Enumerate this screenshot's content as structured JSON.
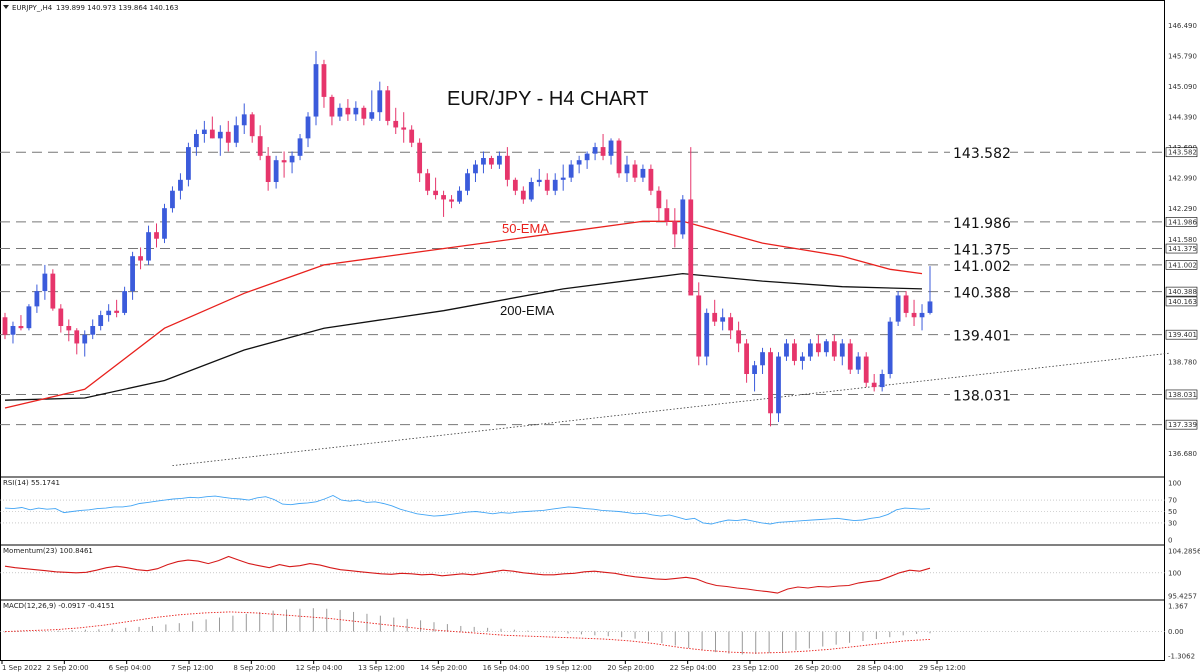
{
  "header": {
    "symbol": "EURJPY_,H4",
    "ohlc": "139.899 140.973 139.864 140.163"
  },
  "colors": {
    "bull": "#3b5bdb",
    "bear": "#e6356b",
    "ema50": "#e8211d",
    "ema200": "#111111",
    "rsi": "#42a5f5",
    "momentum": "#d61a1a",
    "grid": "#999999"
  },
  "chart_data": [
    {
      "type": "candlestick",
      "title": "EUR/JPY - H4 CHART",
      "ylim": [
        136.3,
        146.75
      ],
      "y_ticks": [
        "146.490",
        "145.790",
        "145.090",
        "144.390",
        "143.690",
        "143.582",
        "142.990",
        "142.290",
        "141.986",
        "141.580",
        "141.375",
        "141.002",
        "140.388",
        "140.163",
        "139.401",
        "138.780",
        "138.031",
        "137.339",
        "136.680"
      ],
      "x_ticks": [
        "1 Sep 2022",
        "2 Sep 20:00",
        "6 Sep 04:00",
        "7 Sep 12:00",
        "8 Sep 20:00",
        "12 Sep 04:00",
        "13 Sep 12:00",
        "14 Sep 20:00",
        "16 Sep 04:00",
        "19 Sep 12:00",
        "20 Sep 20:00",
        "22 Sep 04:00",
        "23 Sep 12:00",
        "26 Sep 20:00",
        "28 Sep 04:00",
        "29 Sep 12:00"
      ],
      "levels": [
        {
          "value": 143.582,
          "label": "143.582",
          "tag": "143.582"
        },
        {
          "value": 141.986,
          "label": "141.986",
          "tag": "141.986"
        },
        {
          "value": 141.375,
          "label": "141.375",
          "tag": "141.375"
        },
        {
          "value": 141.002,
          "label": "141.002",
          "tag": "141.002"
        },
        {
          "value": 140.388,
          "label": "140.388",
          "tag": "140.388"
        },
        {
          "value": 139.401,
          "label": "139.401",
          "tag": "139.401"
        },
        {
          "value": 138.031,
          "label": "138.031",
          "tag": "138.031"
        },
        {
          "value": 137.339,
          "label": "",
          "tag": "137.339"
        }
      ],
      "current_price": "140.163",
      "annotations": {
        "ema50": "50-EMA",
        "ema200": "200-EMA"
      },
      "ema50": [
        [
          0,
          137.72
        ],
        [
          10,
          138.15
        ],
        [
          20,
          139.55
        ],
        [
          30,
          140.35
        ],
        [
          40,
          141.0
        ],
        [
          50,
          141.25
        ],
        [
          60,
          141.5
        ],
        [
          70,
          141.75
        ],
        [
          80,
          142.0
        ],
        [
          85,
          142.0
        ],
        [
          95,
          141.5
        ],
        [
          105,
          141.2
        ],
        [
          111,
          140.9
        ],
        [
          115,
          140.8
        ]
      ],
      "ema200": [
        [
          0,
          137.9
        ],
        [
          10,
          137.95
        ],
        [
          20,
          138.35
        ],
        [
          30,
          139.05
        ],
        [
          40,
          139.55
        ],
        [
          55,
          139.95
        ],
        [
          70,
          140.45
        ],
        [
          85,
          140.8
        ],
        [
          95,
          140.63
        ],
        [
          105,
          140.5
        ],
        [
          115,
          140.45
        ]
      ],
      "trendline": [
        [
          21,
          136.4
        ],
        [
          116,
          138.36
        ]
      ],
      "candles": [
        [
          139.8,
          139.9,
          139.3,
          139.4
        ],
        [
          139.4,
          139.7,
          139.2,
          139.6
        ],
        [
          139.6,
          139.85,
          139.5,
          139.55
        ],
        [
          139.55,
          140.1,
          139.5,
          140.05
        ],
        [
          140.05,
          140.55,
          139.9,
          140.4
        ],
        [
          140.4,
          141.0,
          140.2,
          140.8
        ],
        [
          140.8,
          140.9,
          139.95,
          140.0
        ],
        [
          140.0,
          140.1,
          139.45,
          139.6
        ],
        [
          139.6,
          139.75,
          139.25,
          139.5
        ],
        [
          139.5,
          139.55,
          138.95,
          139.2
        ],
        [
          139.2,
          139.5,
          138.9,
          139.4
        ],
        [
          139.4,
          139.75,
          139.3,
          139.6
        ],
        [
          139.6,
          139.95,
          139.5,
          139.85
        ],
        [
          139.85,
          140.1,
          139.7,
          139.95
        ],
        [
          139.95,
          140.2,
          139.8,
          139.9
        ],
        [
          139.9,
          140.5,
          139.85,
          140.4
        ],
        [
          140.4,
          141.3,
          140.2,
          141.2
        ],
        [
          141.2,
          141.4,
          140.9,
          141.1
        ],
        [
          141.1,
          141.9,
          141.0,
          141.75
        ],
        [
          141.75,
          141.95,
          141.4,
          141.6
        ],
        [
          141.6,
          142.4,
          141.5,
          142.3
        ],
        [
          142.3,
          142.8,
          142.2,
          142.7
        ],
        [
          142.7,
          143.1,
          142.5,
          142.95
        ],
        [
          142.95,
          143.8,
          142.8,
          143.7
        ],
        [
          143.7,
          144.1,
          143.5,
          144.0
        ],
        [
          144.0,
          144.3,
          143.8,
          144.1
        ],
        [
          144.1,
          144.4,
          143.9,
          143.9
        ],
        [
          143.9,
          144.2,
          143.5,
          144.05
        ],
        [
          144.05,
          144.3,
          143.6,
          143.8
        ],
        [
          143.8,
          144.4,
          143.7,
          144.2
        ],
        [
          144.2,
          144.7,
          144.0,
          144.45
        ],
        [
          144.45,
          144.5,
          143.8,
          143.95
        ],
        [
          143.95,
          144.2,
          143.4,
          143.5
        ],
        [
          143.5,
          143.7,
          142.7,
          142.9
        ],
        [
          142.9,
          143.5,
          142.75,
          143.4
        ],
        [
          143.4,
          143.6,
          143.0,
          143.35
        ],
        [
          143.35,
          143.6,
          143.1,
          143.5
        ],
        [
          143.5,
          144.0,
          143.4,
          143.9
        ],
        [
          143.9,
          144.5,
          143.7,
          144.4
        ],
        [
          144.4,
          145.9,
          144.2,
          145.6
        ],
        [
          145.6,
          145.7,
          144.6,
          144.85
        ],
        [
          144.85,
          144.9,
          144.2,
          144.4
        ],
        [
          144.4,
          144.7,
          144.3,
          144.6
        ],
        [
          144.6,
          144.8,
          144.3,
          144.45
        ],
        [
          144.45,
          144.75,
          144.3,
          144.6
        ],
        [
          144.6,
          144.65,
          144.2,
          144.35
        ],
        [
          144.35,
          145.0,
          144.3,
          144.5
        ],
        [
          144.5,
          145.2,
          144.3,
          145.0
        ],
        [
          145.0,
          145.1,
          144.2,
          144.3
        ],
        [
          144.3,
          144.6,
          144.0,
          144.15
        ],
        [
          144.15,
          144.5,
          143.8,
          144.1
        ],
        [
          144.1,
          144.2,
          143.7,
          143.8
        ],
        [
          143.8,
          143.9,
          142.9,
          143.1
        ],
        [
          143.1,
          143.2,
          142.6,
          142.7
        ],
        [
          142.7,
          143.0,
          142.5,
          142.6
        ],
        [
          142.6,
          142.7,
          142.1,
          142.5
        ],
        [
          142.5,
          142.6,
          142.3,
          142.45
        ],
        [
          142.45,
          142.8,
          142.4,
          142.7
        ],
        [
          142.7,
          143.2,
          142.6,
          143.1
        ],
        [
          143.1,
          143.4,
          142.9,
          143.3
        ],
        [
          143.3,
          143.6,
          143.1,
          143.45
        ],
        [
          143.45,
          143.5,
          143.2,
          143.3
        ],
        [
          143.3,
          143.6,
          143.2,
          143.5
        ],
        [
          143.5,
          143.7,
          142.8,
          142.95
        ],
        [
          142.95,
          143.0,
          142.6,
          142.7
        ],
        [
          142.7,
          142.8,
          142.4,
          142.5
        ],
        [
          142.5,
          143.0,
          142.45,
          142.9
        ],
        [
          142.9,
          143.2,
          142.8,
          142.95
        ],
        [
          142.95,
          143.1,
          142.6,
          142.7
        ],
        [
          142.7,
          143.1,
          142.6,
          142.95
        ],
        [
          142.95,
          143.3,
          142.7,
          143.0
        ],
        [
          143.0,
          143.4,
          142.9,
          143.3
        ],
        [
          143.3,
          143.5,
          143.1,
          143.4
        ],
        [
          143.4,
          143.6,
          143.2,
          143.55
        ],
        [
          143.55,
          143.8,
          143.4,
          143.7
        ],
        [
          143.7,
          144.0,
          143.4,
          143.5
        ],
        [
          143.5,
          143.9,
          143.3,
          143.85
        ],
        [
          143.85,
          143.9,
          143.0,
          143.1
        ],
        [
          143.1,
          143.5,
          142.9,
          143.3
        ],
        [
          143.3,
          143.4,
          142.9,
          143.0
        ],
        [
          143.0,
          143.3,
          142.9,
          143.2
        ],
        [
          143.2,
          143.3,
          142.6,
          142.7
        ],
        [
          142.7,
          142.8,
          142.0,
          142.3
        ],
        [
          142.3,
          142.5,
          141.9,
          142.0
        ],
        [
          142.0,
          142.3,
          141.4,
          141.7
        ],
        [
          141.7,
          142.6,
          141.6,
          142.5
        ],
        [
          142.5,
          143.7,
          140.4,
          140.3
        ],
        [
          140.3,
          140.6,
          138.7,
          138.9
        ],
        [
          138.9,
          140.0,
          138.7,
          139.9
        ],
        [
          139.9,
          140.2,
          139.6,
          139.7
        ],
        [
          139.7,
          140.0,
          139.5,
          139.8
        ],
        [
          139.8,
          139.9,
          139.3,
          139.5
        ],
        [
          139.5,
          139.7,
          139.0,
          139.2
        ],
        [
          139.2,
          139.3,
          138.3,
          138.5
        ],
        [
          138.5,
          138.8,
          138.1,
          138.7
        ],
        [
          138.7,
          139.1,
          138.5,
          139.0
        ],
        [
          139.0,
          139.1,
          137.3,
          137.6
        ],
        [
          137.6,
          139.0,
          137.4,
          138.9
        ],
        [
          138.9,
          139.3,
          138.8,
          139.2
        ],
        [
          139.2,
          139.3,
          138.7,
          138.8
        ],
        [
          138.8,
          139.0,
          138.6,
          138.9
        ],
        [
          138.9,
          139.3,
          138.8,
          139.2
        ],
        [
          139.2,
          139.4,
          138.9,
          139.0
        ],
        [
          139.0,
          139.3,
          138.9,
          139.25
        ],
        [
          139.25,
          139.4,
          138.8,
          138.9
        ],
        [
          138.9,
          139.3,
          138.7,
          139.2
        ],
        [
          139.2,
          139.3,
          138.5,
          138.6
        ],
        [
          138.6,
          139.0,
          138.5,
          138.9
        ],
        [
          138.9,
          139.0,
          138.2,
          138.3
        ],
        [
          138.3,
          138.5,
          138.1,
          138.2
        ],
        [
          138.2,
          138.6,
          138.1,
          138.5
        ],
        [
          138.5,
          139.8,
          138.4,
          139.7
        ],
        [
          139.7,
          140.4,
          139.6,
          140.3
        ],
        [
          140.3,
          140.4,
          139.8,
          139.9
        ],
        [
          139.9,
          140.2,
          139.6,
          139.8
        ],
        [
          139.8,
          140.1,
          139.5,
          139.9
        ],
        [
          139.899,
          140.973,
          139.864,
          140.163
        ]
      ]
    },
    {
      "type": "line",
      "title": "RSI(14) 55.1741",
      "ylim": [
        0,
        100
      ],
      "y_ticks": [
        "100",
        "70",
        "50",
        "30",
        "0"
      ],
      "values": [
        56,
        55,
        57,
        53,
        56,
        54,
        55,
        48,
        50,
        52,
        53,
        55,
        56,
        58,
        58,
        60,
        64,
        66,
        68,
        70,
        72,
        73,
        75,
        74,
        76,
        77,
        75,
        73,
        72,
        70,
        74,
        76,
        71,
        63,
        62,
        64,
        65,
        67,
        72,
        78,
        70,
        68,
        70,
        66,
        67,
        64,
        60,
        54,
        50,
        46,
        44,
        42,
        43,
        45,
        47,
        49,
        50,
        48,
        46,
        48,
        47,
        49,
        50,
        51,
        52,
        54,
        56,
        58,
        57,
        55,
        54,
        52,
        51,
        50,
        48,
        46,
        47,
        44,
        42,
        44,
        40,
        36,
        38,
        30,
        28,
        32,
        35,
        34,
        36,
        33,
        30,
        28,
        31,
        32,
        33,
        34,
        35,
        36,
        37,
        38,
        36,
        34,
        35,
        38,
        40,
        45,
        53,
        56,
        55,
        54,
        55
      ]
    },
    {
      "type": "line",
      "title": "Momentum(23) 100.8461",
      "ylim": [
        95.4257,
        104.2856
      ],
      "y_ticks": [
        "104.2856",
        "100",
        "95.4257"
      ],
      "values": [
        101.3,
        101.0,
        100.8,
        100.6,
        100.4,
        100.2,
        100.1,
        100.0,
        100.1,
        100.5,
        101.0,
        101.3,
        101.0,
        100.6,
        100.4,
        100.8,
        101.6,
        102.2,
        102.5,
        102.3,
        101.8,
        102.4,
        103.2,
        102.5,
        101.8,
        101.4,
        101.0,
        101.6,
        101.2,
        101.4,
        101.8,
        101.5,
        101.0,
        100.6,
        100.4,
        100.2,
        100.0,
        99.8,
        99.7,
        99.9,
        99.8,
        99.6,
        99.7,
        99.4,
        99.6,
        99.8,
        99.6,
        99.9,
        100.2,
        100.5,
        100.3,
        100.0,
        99.8,
        99.6,
        99.6,
        99.8,
        99.9,
        100.2,
        100.3,
        100.1,
        99.9,
        99.5,
        99.2,
        99.0,
        98.8,
        98.7,
        98.9,
        99.1,
        98.8,
        98.0,
        97.5,
        97.3,
        97.0,
        96.8,
        96.5,
        96.3,
        96.0,
        96.8,
        97.2,
        97.0,
        97.3,
        97.2,
        97.4,
        97.5,
        98.0,
        98.3,
        98.5,
        99.2,
        100.0,
        100.5,
        100.3,
        100.9
      ]
    },
    {
      "type": "bar",
      "title": "MACD(12,26,9) -0.0917 -0.4151",
      "ylim": [
        -1.3062,
        1.367
      ],
      "y_ticks": [
        "1.367",
        "0.00",
        "-1.3062"
      ],
      "values": [
        -0.05,
        -0.02,
        0.0,
        0.02,
        0.05,
        0.08,
        0.1,
        0.12,
        0.15,
        0.2,
        0.25,
        0.3,
        0.38,
        0.45,
        0.55,
        0.65,
        0.75,
        0.85,
        0.95,
        1.05,
        1.12,
        1.18,
        1.22,
        1.25,
        1.22,
        1.15,
        1.05,
        0.95,
        0.85,
        0.75,
        0.68,
        0.6,
        0.5,
        0.4,
        0.3,
        0.25,
        0.2,
        0.15,
        0.1,
        0.05,
        0.0,
        -0.05,
        -0.1,
        -0.15,
        -0.2,
        -0.25,
        -0.3,
        -0.38,
        -0.5,
        -0.62,
        -0.75,
        -0.88,
        -1.0,
        -1.1,
        -1.18,
        -1.22,
        -1.2,
        -1.15,
        -1.1,
        -1.0,
        -0.9,
        -0.8,
        -0.7,
        -0.6,
        -0.5,
        -0.4,
        -0.3,
        -0.2,
        -0.12,
        -0.09
      ],
      "signal": [
        0.0,
        0.05,
        0.1,
        0.2,
        0.35,
        0.55,
        0.75,
        0.9,
        1.0,
        1.05,
        1.0,
        0.9,
        0.8,
        0.7,
        0.55,
        0.4,
        0.25,
        0.1,
        0.0,
        -0.1,
        -0.2,
        -0.25,
        -0.3,
        -0.35,
        -0.4,
        -0.5,
        -0.65,
        -0.85,
        -1.0,
        -1.1,
        -1.15,
        -1.12,
        -1.05,
        -0.95,
        -0.8,
        -0.65,
        -0.5,
        -0.42
      ]
    }
  ]
}
